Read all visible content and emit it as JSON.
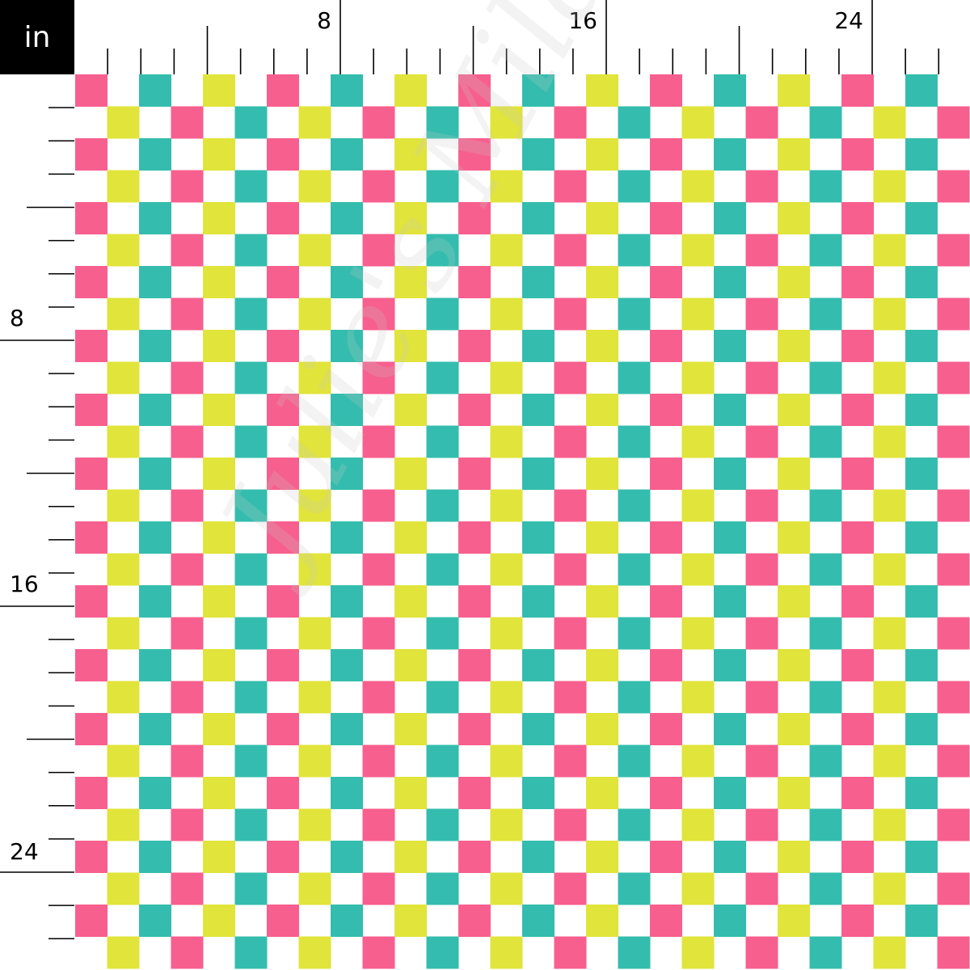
{
  "ruler": {
    "unit": "in",
    "top_labels": [
      "8",
      "16",
      "24"
    ],
    "left_labels": [
      "8",
      "16",
      "24"
    ]
  },
  "pattern": {
    "type": "checkerboard",
    "colors": {
      "pink": "#F75F8E",
      "teal": "#34BDAE",
      "yellow": "#E1E43A",
      "background": "#FFFFFF"
    },
    "even_row_sequence": [
      "pink",
      "teal",
      "yellow"
    ],
    "odd_row_sequence": [
      "yellow",
      "pink",
      "teal"
    ]
  },
  "watermark": "Julie's Mila"
}
